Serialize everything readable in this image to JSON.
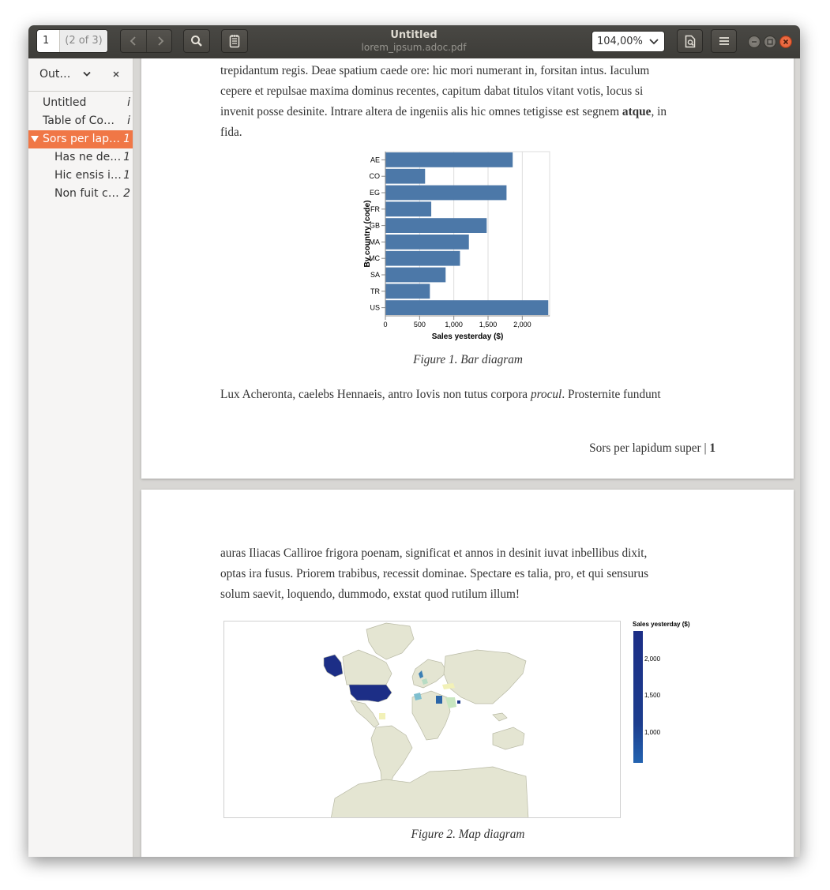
{
  "toolbar": {
    "current_page": "1",
    "page_count": "(2 of 3)",
    "title": "Untitled",
    "filename": "lorem_ipsum.adoc.pdf",
    "zoom": "104,00%"
  },
  "sidebar": {
    "header": "Out…",
    "items": [
      {
        "label": "Untitled",
        "page": "i"
      },
      {
        "label": "Table of Co…",
        "page": "i"
      },
      {
        "label": "Sors per lap…",
        "page": "1"
      },
      {
        "label": "Has ne de…",
        "page": "1"
      },
      {
        "label": "Hic ensis i…",
        "page": "1"
      },
      {
        "label": "Non fuit c…",
        "page": "2"
      }
    ]
  },
  "page1": {
    "line1": "trepidantum regis. Deae spatium caede ore: hic mori numerant in, forsitan intus. Iaculum",
    "line2": "cepere et repulsae maxima dominus recentes, capitum dabat titulos vitant votis, locus si",
    "line3_a": "invenit posse desinite. Intrare altera de ingeniis alis hic omnes tetigisse est segnem ",
    "line3_bold": "atque",
    "line3_b": ", in",
    "line4": "fida.",
    "figure_caption": "Figure 1. Bar diagram",
    "after_a": "Lux Acheronta, caelebs Hennaeis, antro Iovis non tutus corpora ",
    "after_italic": "procul",
    "after_b": ". Prosternite fundunt",
    "footer_text": "Sors per lapidum super | ",
    "footer_num": "1"
  },
  "page2": {
    "line1": "auras Iliacas Calliroe frigora poenam, significat et annos in desinit iuvat inbellibus dixit,",
    "line2": "optas ira fusus. Priorem trabibus, recessit dominae. Spectare es talia, pro, et qui sensurus",
    "line3": "solum saevit, loquendo, dummodo, exstat quod rutilum illum!",
    "figure_caption": "Figure 2. Map diagram",
    "legend_title": "Sales yesterday ($)",
    "legend_ticks": [
      "2,000",
      "1,500",
      "1,000"
    ]
  },
  "chart_data": {
    "type": "bar",
    "orientation": "horizontal",
    "categories": [
      "AE",
      "CO",
      "EG",
      "FR",
      "GB",
      "MA",
      "MC",
      "SA",
      "TR",
      "US"
    ],
    "values": [
      1860,
      580,
      1770,
      670,
      1480,
      1220,
      1090,
      880,
      650,
      2380
    ],
    "xlabel": "Sales yesterday ($)",
    "ylabel": "By country (code)",
    "xticks": [
      "0",
      "500",
      "1,000",
      "1,500",
      "2,000"
    ],
    "xlim": [
      0,
      2400
    ],
    "bar_color": "#4c78a8",
    "grid": true
  },
  "colors": {
    "accent": "#f07746",
    "bar": "#4c78a8",
    "land": "#e4e5d2",
    "us_fill": "#1c2e86"
  }
}
